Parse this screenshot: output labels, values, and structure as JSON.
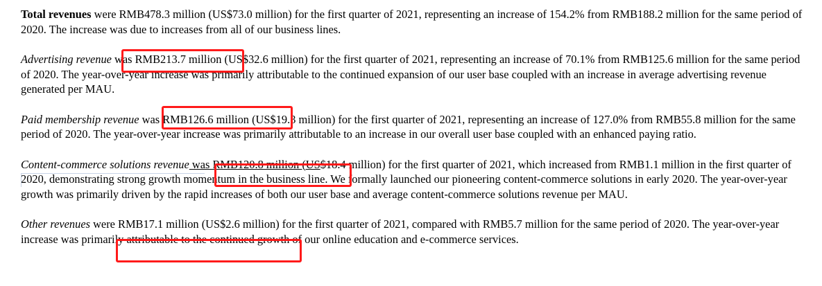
{
  "paragraphs": {
    "total": {
      "lead": "Total revenues",
      "text": " were RMB478.3 million (US$73.0 million) for the first quarter of 2021, representing an increase of 154.2% from RMB188.2 million for the same period of 2020. The increase was due to increases from all of our business lines."
    },
    "advertising": {
      "lead": "Advertising revenue",
      "highlight": " was RMB213.7 million",
      "text": " (US$32.6 million) for the first quarter of 2021, representing an increase of 70.1% from RMB125.6 million for the same period of 2020. The year-over-year increase was primarily attributable to the continued expansion of our user base coupled with an increase in average advertising revenue generated per MAU."
    },
    "membership": {
      "lead": "Paid membership revenue",
      "highlight": " was RMB126.6 million (US",
      "text": "$19.3 million) for the first quarter of 2021, representing an increase of 127.0% from RMB55.8 million for the same period of 2020. The year-over-year increase was primarily attributable to an increase in our overall user base coupled with an enhanced paying ratio."
    },
    "content_commerce": {
      "lead": "Content-commerce solutions revenue",
      "highlight": " was RMB120.8 million (US",
      "text": "$18.4 million) for the first quarter of 2021, which increased from RMB1.1 million in the first quarter of 2020, demonstrating strong growth momentum in the business line. We formally launched our pioneering content-commerce solutions in early 2020. The year-over-year growth was primarily driven by the rapid increases of both our user base and average content-commerce solutions revenue per MAU."
    },
    "other": {
      "lead": "Other revenues",
      "highlight": " were RMB17.1 million (US$2.6 million)",
      "text": " for the first quarter of 2021, compared with RMB5.7 million for the same period of 2020. The year-over-year increase was primarily attributable to the continued growth of our online education and e-commerce services."
    }
  },
  "annotation_color": "#ff1a1a"
}
